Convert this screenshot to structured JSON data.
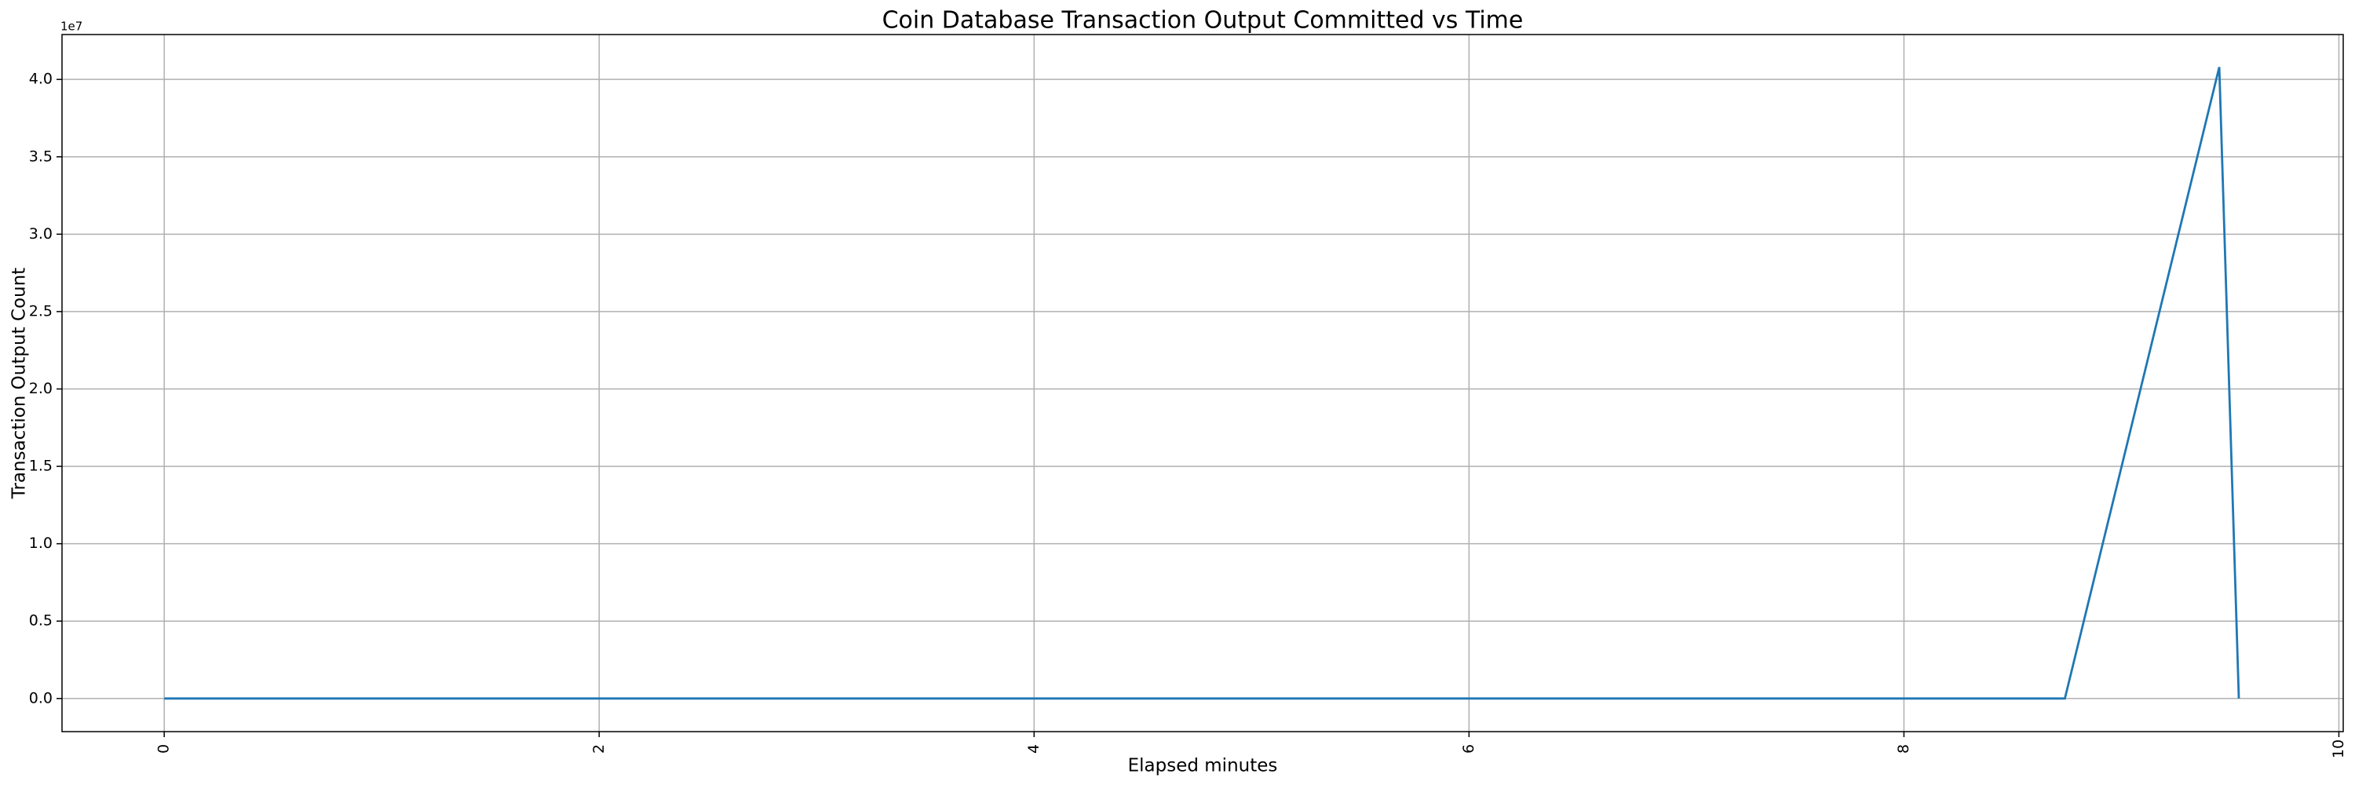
{
  "chart_data": {
    "type": "line",
    "title": "Coin Database Transaction Output Committed vs Time",
    "x_label": "Elapsed minutes",
    "y_label": "Transaction Output Count",
    "y_offset_label": "1e7",
    "x": [
      0,
      8.74,
      9.45,
      9.54
    ],
    "series": [
      {
        "name": "Transaction Output Count",
        "color": "#1f77b4",
        "values": [
          0,
          0,
          40800000,
          0
        ]
      }
    ],
    "xlim": [
      -0.47,
      10.02
    ],
    "ylim": [
      -2140000,
      42900000
    ],
    "xticks": [
      0,
      2,
      4,
      6,
      8,
      10
    ],
    "yticks": [
      {
        "value": 0,
        "label": "0.0"
      },
      {
        "value": 5000000,
        "label": "0.5"
      },
      {
        "value": 10000000,
        "label": "1.0"
      },
      {
        "value": 15000000,
        "label": "1.5"
      },
      {
        "value": 20000000,
        "label": "2.0"
      },
      {
        "value": 25000000,
        "label": "2.5"
      },
      {
        "value": 30000000,
        "label": "3.0"
      },
      {
        "value": 35000000,
        "label": "3.5"
      },
      {
        "value": 40000000,
        "label": "4.0"
      }
    ],
    "grid": true
  }
}
